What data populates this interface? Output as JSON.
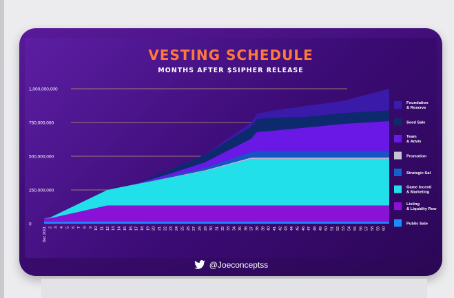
{
  "chart_data": {
    "type": "area",
    "stacked": true,
    "title": "VESTING SCHEDULE",
    "subtitle": "MONTHS AFTER $SIPHER RELEASE",
    "ylim": [
      0,
      1000000000
    ],
    "ytick_labels": [
      "1,000,000,000",
      "750,000,000",
      "500,000,000",
      "250,000,000",
      "0"
    ],
    "ytick_values": [
      1000000000,
      750000000,
      500000000,
      250000000,
      0
    ],
    "xtick_labels": [
      "Dec 2021",
      "2",
      "3",
      "4",
      "5",
      "6",
      "7",
      "8",
      "9",
      "10",
      "11",
      "12",
      "13",
      "14",
      "15",
      "16",
      "17",
      "18",
      "19",
      "20",
      "21",
      "22",
      "23",
      "24",
      "25",
      "26",
      "27",
      "28",
      "29",
      "30",
      "31",
      "32",
      "33",
      "34",
      "35",
      "36",
      "37",
      "38",
      "39",
      "40",
      "41",
      "42",
      "43",
      "44",
      "45",
      "46",
      "47",
      "48",
      "49",
      "50",
      "51",
      "52",
      "53",
      "54",
      "55",
      "56",
      "57",
      "58",
      "59",
      "60"
    ],
    "x": [
      0,
      1,
      11,
      15,
      22,
      28,
      36,
      37,
      40,
      45,
      52,
      60
    ],
    "series": [
      {
        "name": "Public Sale",
        "color": "#1a8cff",
        "values": [
          15000000,
          15000000,
          15000000,
          15000000,
          15000000,
          15000000,
          15000000,
          15000000,
          15000000,
          15000000,
          15000000,
          15000000
        ]
      },
      {
        "name": "Listing & Liquidity Reward",
        "color": "#8a12d6",
        "values": [
          25000000,
          25000000,
          120000000,
          120000000,
          120000000,
          120000000,
          120000000,
          120000000,
          120000000,
          120000000,
          120000000,
          120000000
        ]
      },
      {
        "name": "Game Incentive & Marketing",
        "color": "#22e0ea",
        "values": [
          0,
          5000000,
          115000000,
          150000000,
          205000000,
          255000000,
          345000000,
          345000000,
          345000000,
          345000000,
          345000000,
          345000000
        ]
      },
      {
        "name": "Promotion",
        "color": "#c7c0d6",
        "values": [
          0,
          0,
          0,
          0,
          4000000,
          6000000,
          10000000,
          10000000,
          10000000,
          10000000,
          10000000,
          10000000
        ]
      },
      {
        "name": "Strategic Sale",
        "color": "#1555c6",
        "values": [
          0,
          0,
          0,
          0,
          10000000,
          20000000,
          40000000,
          50000000,
          50000000,
          50000000,
          50000000,
          50000000
        ]
      },
      {
        "name": "Team & Advisor",
        "color": "#6a18e6",
        "values": [
          0,
          0,
          0,
          0,
          18000000,
          40000000,
          100000000,
          140000000,
          150000000,
          170000000,
          200000000,
          220000000
        ]
      },
      {
        "name": "Seed Sale",
        "color": "#0d2a6e",
        "values": [
          0,
          0,
          0,
          0,
          30000000,
          55000000,
          90000000,
          95000000,
          95000000,
          80000000,
          80000000,
          80000000
        ]
      },
      {
        "name": "Foundation & Reserve",
        "color": "#3a1aa8",
        "values": [
          0,
          0,
          0,
          0,
          0,
          4000000,
          30000000,
          40000000,
          55000000,
          80000000,
          90000000,
          160000000
        ]
      }
    ],
    "legend": [
      {
        "label": "Foundation & Reserve",
        "color": "#3b1cb0"
      },
      {
        "label": "Seed Sale",
        "color": "#0f2a66"
      },
      {
        "label": "Team & Advis",
        "color": "#6b18e6"
      },
      {
        "label": "Promotion",
        "color": "#c9c3d6"
      },
      {
        "label": "Strategic Sal",
        "color": "#1560d0"
      },
      {
        "label": "Game Incenti & Marketing",
        "color": "#22e0ea"
      },
      {
        "label": "Listing & Liquidity Rew",
        "color": "#8c10d8"
      },
      {
        "label": "Public Sale",
        "color": "#1a8cff"
      }
    ],
    "legend_position": "right"
  },
  "footer": {
    "handle": "@Joeconceptss",
    "icon": "twitter-bird-icon"
  }
}
